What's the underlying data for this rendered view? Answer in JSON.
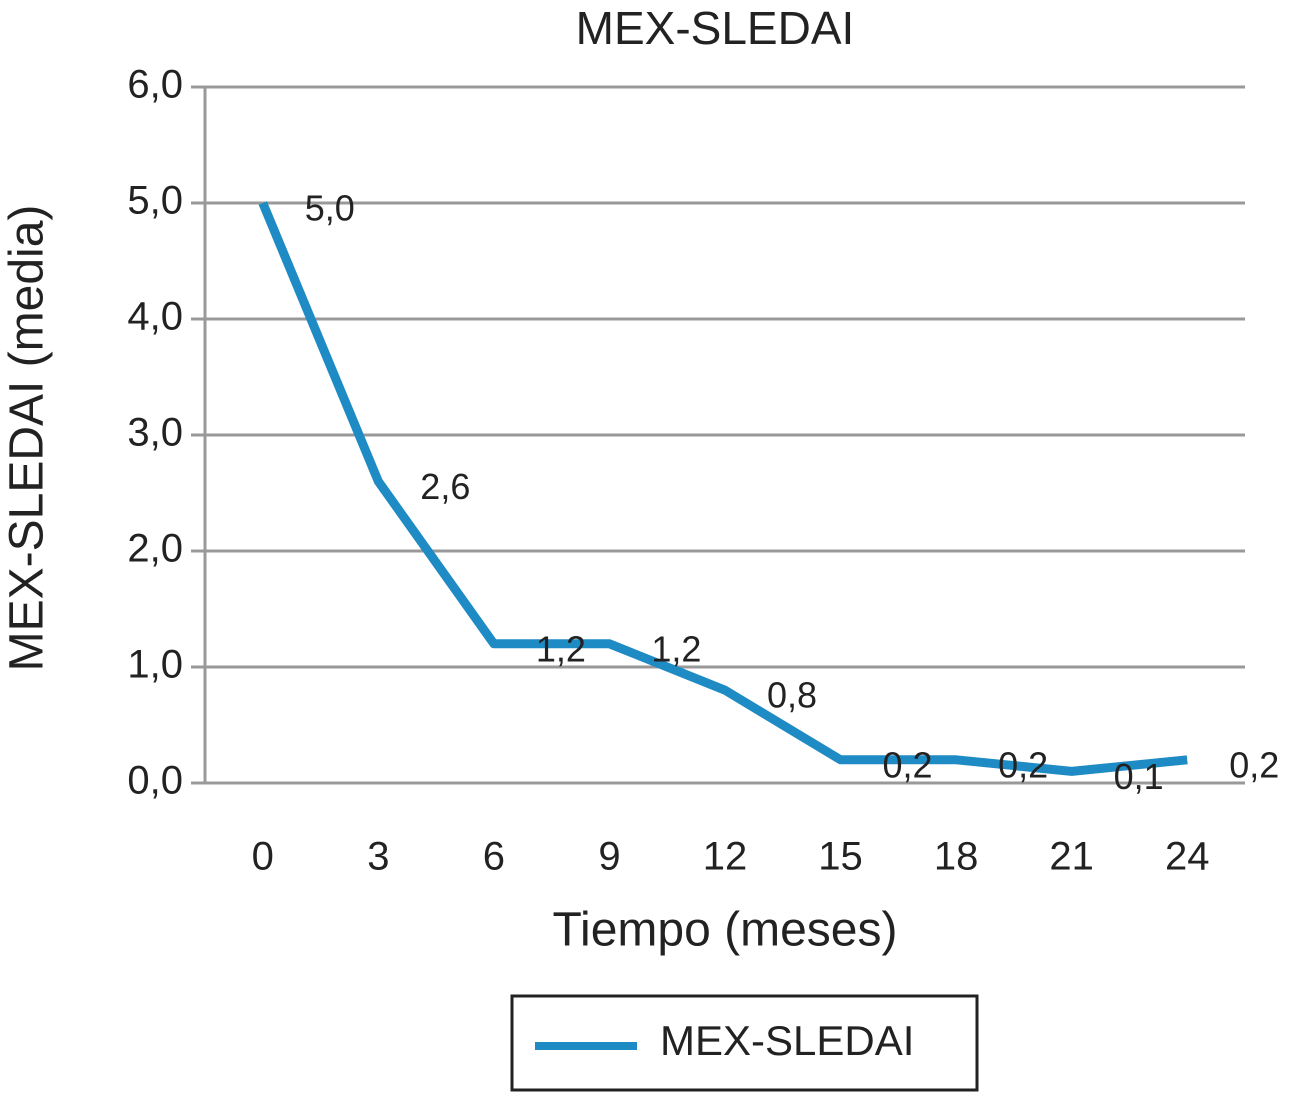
{
  "chart_data": {
    "type": "line",
    "title": "MEX-SLEDAI",
    "x_label": "Tiempo (meses)",
    "y_label": "MEX-SLEDAI (media)",
    "categories": [
      "0",
      "3",
      "6",
      "9",
      "12",
      "15",
      "18",
      "21",
      "24"
    ],
    "series": [
      {
        "name": "MEX-SLEDAI",
        "color": "#1f8bc4",
        "values": [
          5.0,
          2.6,
          1.2,
          1.2,
          0.8,
          0.2,
          0.2,
          0.1,
          0.2
        ],
        "value_labels": [
          "5,0",
          "2,6",
          "1,2",
          "1,2",
          "0,8",
          "0,2",
          "0,2",
          "0,1",
          "0,2"
        ]
      }
    ],
    "ylim": [
      0,
      6
    ],
    "yticks": [
      {
        "value": 0,
        "label": "0,0"
      },
      {
        "value": 1,
        "label": "1,0"
      },
      {
        "value": 2,
        "label": "2,0"
      },
      {
        "value": 3,
        "label": "3,0"
      },
      {
        "value": 4,
        "label": "4,0"
      },
      {
        "value": 5,
        "label": "5,0"
      },
      {
        "value": 6,
        "label": "6,0"
      }
    ],
    "grid": true,
    "legend": "bottom"
  }
}
